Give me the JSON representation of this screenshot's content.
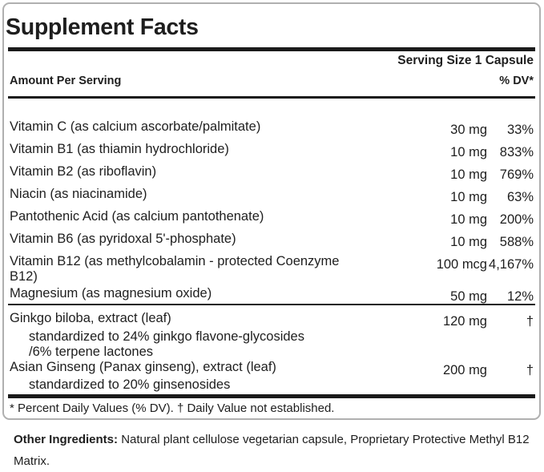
{
  "panel": {
    "title": "Supplement Facts",
    "serving_size": "Serving Size 1 Capsule",
    "headers": {
      "amount": "Amount Per Serving",
      "dv": "% DV*"
    },
    "nutrients": [
      {
        "name": "Vitamin C (as calcium ascorbate/palmitate)",
        "amount": "30 mg",
        "dv": "33%"
      },
      {
        "name": "Vitamin B1 (as thiamin hydrochloride)",
        "amount": "10 mg",
        "dv": "833%"
      },
      {
        "name": "Vitamin B2 (as riboflavin)",
        "amount": "10 mg",
        "dv": "769%"
      },
      {
        "name": "Niacin (as niacinamide)",
        "amount": "10 mg",
        "dv": "63%"
      },
      {
        "name": "Pantothenic Acid (as calcium pantothenate)",
        "amount": "10 mg",
        "dv": "200%"
      },
      {
        "name": "Vitamin B6 (as pyridoxal 5'-phosphate)",
        "amount": "10 mg",
        "dv": "588%"
      },
      {
        "name": "Vitamin B12 (as methylcobalamin - protected Coenzyme B12)",
        "amount": "100 mcg",
        "dv": "4,167%"
      },
      {
        "name": "Magnesium (as magnesium oxide)",
        "amount": "50 mg",
        "dv": "12%"
      }
    ],
    "botanicals": [
      {
        "name": "Ginkgo biloba, extract (leaf)",
        "amount": "120 mg",
        "dv": "†",
        "sub": [
          "standardized to 24% ginkgo flavone-glycosides",
          "/6% terpene lactones"
        ]
      },
      {
        "name": "Asian Ginseng (Panax ginseng), extract (leaf)",
        "amount": "200 mg",
        "dv": "†",
        "sub": [
          "standardized to 20% ginsenosides"
        ]
      }
    ],
    "footnote": "* Percent Daily Values (% DV). † Daily Value not established."
  },
  "other_ingredients": {
    "label": "Other Ingredients:",
    "text": "Natural plant cellulose vegetarian capsule, Proprietary Protective Methyl B12 Matrix."
  },
  "colors": {
    "text": "#1e1e1e",
    "rule": "#1a1a1a",
    "panel_border": "#b0b0b0",
    "background": "#ffffff"
  }
}
